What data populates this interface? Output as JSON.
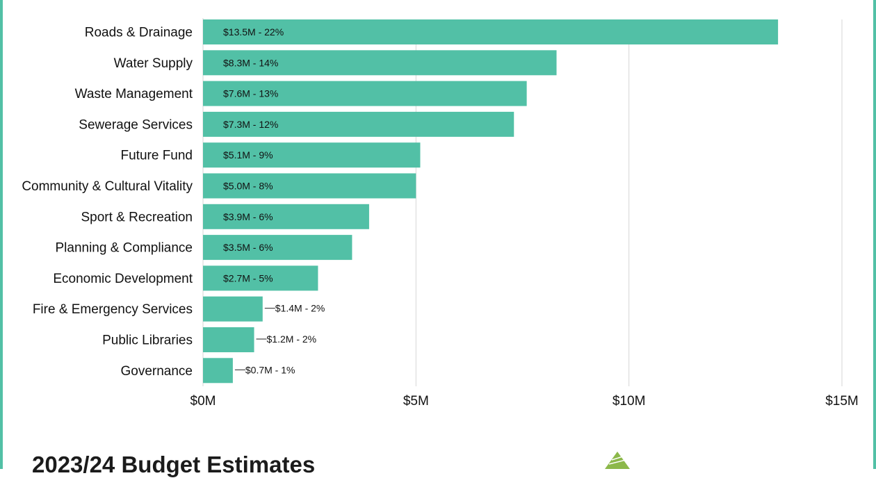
{
  "page": {
    "title": "2023/24 Budget Estimates"
  },
  "colors": {
    "bar": "#52c0a6",
    "frame": "#52c0a6",
    "grid": "#d6d6d6",
    "logo": "#8cb84a"
  },
  "logo": {
    "icon": "tree-logo-icon"
  },
  "chart_data": {
    "type": "bar",
    "orientation": "horizontal",
    "categories": [
      "Roads & Drainage",
      "Water Supply",
      "Waste Management",
      "Sewerage Services",
      "Future Fund",
      "Community & Cultural Vitality",
      "Sport & Recreation",
      "Planning & Compliance",
      "Economic Development",
      "Fire & Emergency Services",
      "Public Libraries",
      "Governance"
    ],
    "values": [
      13.5,
      8.3,
      7.6,
      7.3,
      5.1,
      5.0,
      3.9,
      3.5,
      2.7,
      1.4,
      1.2,
      0.7
    ],
    "data_labels": [
      "$13.5M - 22%",
      "$8.3M - 14%",
      "$7.6M - 13%",
      "$7.3M - 12%",
      "$5.1M - 9%",
      "$5.0M - 8%",
      "$3.9M - 6%",
      "$3.5M - 6%",
      "$2.7M - 5%",
      "$1.4M - 2%",
      "$1.2M - 2%",
      "$0.7M - 1%"
    ],
    "xticks": [
      0,
      5,
      10,
      15
    ],
    "xtick_labels": [
      "$0M",
      "$5M",
      "$10M",
      "$15M"
    ],
    "xlim": [
      0,
      15
    ],
    "unit": "$M",
    "grid": "vertical"
  }
}
